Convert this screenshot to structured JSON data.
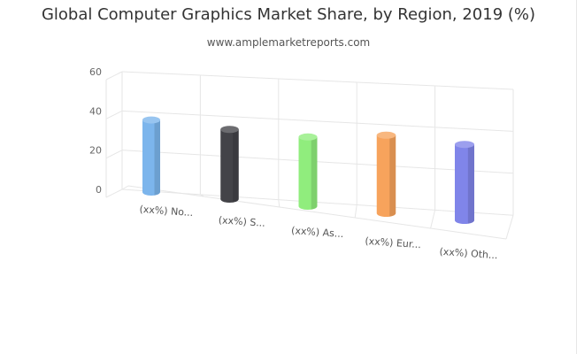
{
  "chart_data": {
    "type": "bar",
    "title": "Global Computer Graphics Market Share, by Region, 2019 (%)",
    "subtitle": "www.amplemarketreports.com",
    "categories": [
      "(xx%) No...",
      "(xx%) S...",
      "(xx%) As...",
      "(xx%) Eur...",
      "(xx%) Oth..."
    ],
    "values": [
      37,
      35,
      34,
      36,
      33
    ],
    "colors": [
      "#7cb5ec",
      "#434348",
      "#90ed7d",
      "#f7a35c",
      "#8085e9"
    ],
    "ylim": [
      0,
      60
    ],
    "yticks": [
      0,
      20,
      40,
      60
    ],
    "grid": true,
    "style": "3d-cylinder"
  }
}
